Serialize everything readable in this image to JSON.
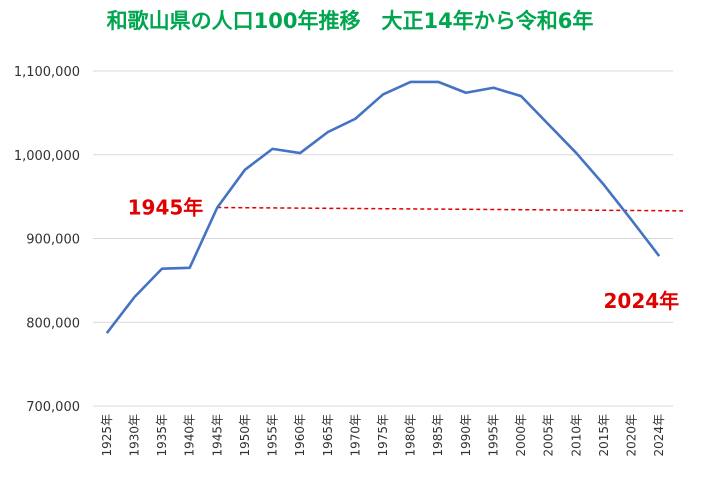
{
  "chart_data": {
    "type": "line",
    "title": "和歌山県の人口100年推移　大正14年から令和6年",
    "xlabel": "",
    "ylabel": "",
    "categories": [
      "1925年",
      "1930年",
      "1935年",
      "1940年",
      "1945年",
      "1950年",
      "1955年",
      "1960年",
      "1965年",
      "1970年",
      "1975年",
      "1980年",
      "1985年",
      "1990年",
      "1995年",
      "2000年",
      "2005年",
      "2010年",
      "2015年",
      "2020年",
      "2024年"
    ],
    "series": [
      {
        "values": [
          787000,
          830000,
          864000,
          865000,
          937000,
          982000,
          1007000,
          1002000,
          1027000,
          1043000,
          1072000,
          1087000,
          1087000,
          1074000,
          1080000,
          1070000,
          1036000,
          1002000,
          964000,
          922000,
          879000
        ]
      }
    ],
    "ylim": [
      700000,
      1100000
    ],
    "yticks": [
      700000,
      800000,
      900000,
      1000000,
      1100000
    ],
    "ytick_labels": [
      "700,000",
      "800,000",
      "900,000",
      "1,000,000",
      "1,100,000"
    ],
    "grid": true,
    "legend": "none",
    "colors": {
      "line": "#4472c4",
      "reference": "#e00000",
      "title": "#00a550",
      "grid": "#d9d9d9"
    },
    "reference_line": {
      "from_category": "1945年",
      "y_start": 937000,
      "y_end": 933000
    },
    "annotations": [
      {
        "text": "1945年",
        "anchor": "1945年"
      },
      {
        "text": "2024年",
        "anchor": "2024年"
      }
    ]
  }
}
